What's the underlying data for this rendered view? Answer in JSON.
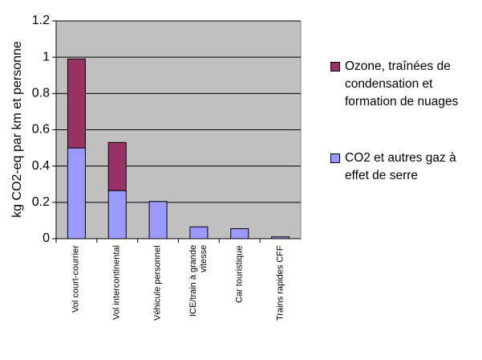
{
  "chart_data": {
    "type": "stacked-bar",
    "y_label": "kg CO2-eq par km et personne",
    "categories": [
      "Vol court-courrier",
      "Vol intercontinental",
      "Véhicule personnel",
      "ICE/train à grande vitesse",
      "Car touristique",
      "Trains rapides CFF"
    ],
    "series": [
      {
        "name": "CO2 et autres gaz à effet de serre",
        "color": "#9999ff",
        "values": [
          0.5,
          0.265,
          0.205,
          0.065,
          0.055,
          0.01
        ]
      },
      {
        "name": "Ozone, traînées de condensation et formation de nuages",
        "color": "#993366",
        "values": [
          0.49,
          0.265,
          0,
          0,
          0,
          0
        ]
      }
    ],
    "ylim": [
      0,
      1.2
    ],
    "yticks": [
      0,
      0.2,
      0.4,
      0.6,
      0.8,
      1,
      1.2
    ],
    "grid": true,
    "legend": "right"
  }
}
